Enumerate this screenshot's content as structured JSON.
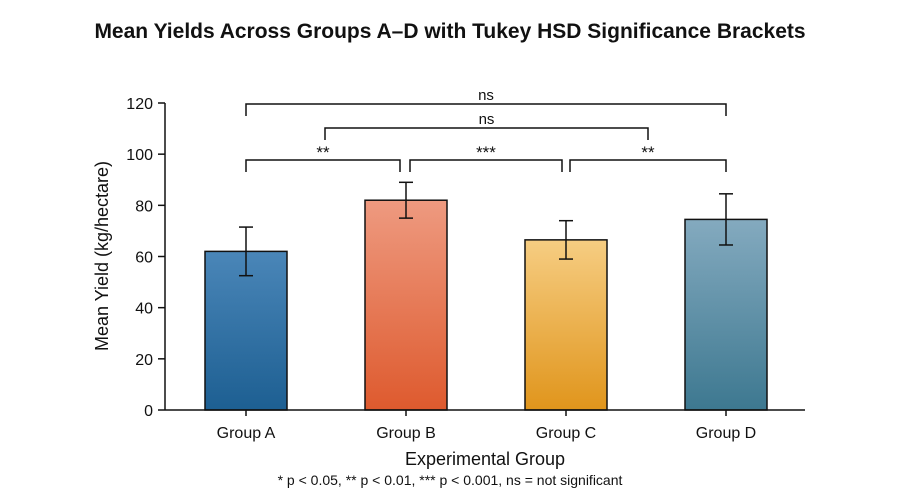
{
  "chart_data": {
    "type": "bar",
    "title": "Mean Yields Across Groups A–D with Tukey HSD Significance Brackets",
    "xlabel": "Experimental Group",
    "ylabel": "Mean Yield (kg/hectare)",
    "ylim": [
      0,
      120
    ],
    "yticks": [
      0,
      20,
      40,
      60,
      80,
      100,
      120
    ],
    "categories": [
      "Group A",
      "Group B",
      "Group C",
      "Group D"
    ],
    "values": [
      62,
      82,
      66.5,
      74.5
    ],
    "error": [
      9.5,
      7,
      7.5,
      10
    ],
    "grid": false,
    "colors": {
      "Group A": [
        "#4a86b8",
        "#1d5f92"
      ],
      "Group B": [
        "#ee9a80",
        "#de5a2e"
      ],
      "Group C": [
        "#f6cd82",
        "#e0951c"
      ],
      "Group D": [
        "#84aabf",
        "#3d7890"
      ]
    },
    "brackets": [
      {
        "from": "Group A",
        "to": "Group B",
        "label": "**"
      },
      {
        "from": "Group B",
        "to": "Group C",
        "label": "***"
      },
      {
        "from": "Group C",
        "to": "Group D",
        "label": "**"
      },
      {
        "from": "Group B",
        "to": "Group C",
        "label": "ns",
        "outer": "Group D"
      },
      {
        "from": "Group A",
        "to": "Group D",
        "label": "ns"
      }
    ],
    "footnote": "* p < 0.05, ** p < 0.01, *** p < 0.001,  ns = not significant"
  }
}
